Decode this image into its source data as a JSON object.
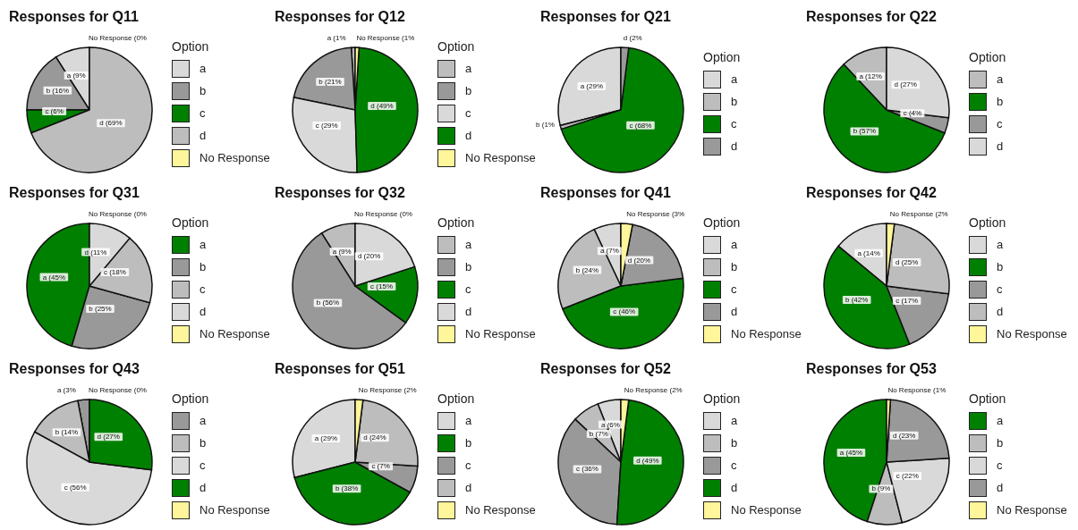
{
  "chart_data": [
    {
      "type": "pie",
      "title": "Responses for Q11",
      "legend_title": "Option",
      "legend": "right",
      "categories": [
        "a",
        "b",
        "c",
        "d",
        "No Response"
      ],
      "values": [
        9,
        16,
        6,
        69,
        0
      ],
      "colors": [
        "#d9d9d9",
        "#999999",
        "#008000",
        "#bdbdbd",
        "#fff59a"
      ],
      "value_labels": [
        "a (9%",
        "b (16%",
        "c (6%",
        "d (69%",
        "No Response (0%"
      ]
    },
    {
      "type": "pie",
      "title": "Responses for Q12",
      "legend_title": "Option",
      "legend": "right",
      "categories": [
        "a",
        "b",
        "c",
        "d",
        "No Response"
      ],
      "values": [
        1,
        21,
        29,
        49,
        1
      ],
      "colors": [
        "#bdbdbd",
        "#999999",
        "#d9d9d9",
        "#008000",
        "#fff59a"
      ],
      "value_labels": [
        "a (1%",
        "b (21%",
        "c (29%",
        "d (49%",
        "No Response (1%"
      ]
    },
    {
      "type": "pie",
      "title": "Responses for Q21",
      "legend_title": "Option",
      "legend": "right",
      "categories": [
        "a",
        "b",
        "c",
        "d"
      ],
      "values": [
        29,
        1,
        68,
        2
      ],
      "colors": [
        "#d9d9d9",
        "#bdbdbd",
        "#008000",
        "#999999"
      ],
      "value_labels": [
        "a (29%",
        "b (1%",
        "c (68%",
        "d (2%"
      ]
    },
    {
      "type": "pie",
      "title": "Responses for Q22",
      "legend_title": "Option",
      "legend": "right",
      "categories": [
        "a",
        "b",
        "c",
        "d"
      ],
      "values": [
        12,
        57,
        4,
        27
      ],
      "colors": [
        "#bdbdbd",
        "#008000",
        "#999999",
        "#d9d9d9"
      ],
      "value_labels": [
        "a (12%",
        "b (57%",
        "c (4%",
        "d (27%"
      ]
    },
    {
      "type": "pie",
      "title": "Responses for Q31",
      "legend_title": "Option",
      "legend": "right",
      "categories": [
        "a",
        "b",
        "c",
        "d",
        "No Response"
      ],
      "values": [
        45,
        25,
        18,
        11,
        0
      ],
      "colors": [
        "#008000",
        "#999999",
        "#bdbdbd",
        "#d9d9d9",
        "#fff59a"
      ],
      "value_labels": [
        "a (45%",
        "b (25%",
        "c (18%",
        "d (11%",
        "No Response (0%"
      ]
    },
    {
      "type": "pie",
      "title": "Responses for Q32",
      "legend_title": "Option",
      "legend": "right",
      "categories": [
        "a",
        "b",
        "c",
        "d",
        "No Response"
      ],
      "values": [
        9,
        56,
        15,
        20,
        0
      ],
      "colors": [
        "#bdbdbd",
        "#999999",
        "#008000",
        "#d9d9d9",
        "#fff59a"
      ],
      "value_labels": [
        "a (9%",
        "b (56%",
        "c (15%",
        "d (20%",
        "No Response (0%"
      ]
    },
    {
      "type": "pie",
      "title": "Responses for Q41",
      "legend_title": "Option",
      "legend": "right",
      "categories": [
        "a",
        "b",
        "c",
        "d",
        "No Response"
      ],
      "values": [
        7,
        24,
        46,
        20,
        3
      ],
      "colors": [
        "#d9d9d9",
        "#bdbdbd",
        "#008000",
        "#999999",
        "#fff59a"
      ],
      "value_labels": [
        "a (7%",
        "b (24%",
        "c (46%",
        "d (20%",
        "No Response (3%"
      ]
    },
    {
      "type": "pie",
      "title": "Responses for Q42",
      "legend_title": "Option",
      "legend": "right",
      "categories": [
        "a",
        "b",
        "c",
        "d",
        "No Response"
      ],
      "values": [
        14,
        42,
        17,
        25,
        2
      ],
      "colors": [
        "#d9d9d9",
        "#008000",
        "#999999",
        "#bdbdbd",
        "#fff59a"
      ],
      "value_labels": [
        "a (14%",
        "b (42%",
        "c (17%",
        "d (25%",
        "No Response (2%"
      ]
    },
    {
      "type": "pie",
      "title": "Responses for Q43",
      "legend_title": "Option",
      "legend": "right",
      "categories": [
        "a",
        "b",
        "c",
        "d",
        "No Response"
      ],
      "values": [
        3,
        14,
        56,
        27,
        0
      ],
      "colors": [
        "#999999",
        "#bdbdbd",
        "#d9d9d9",
        "#008000",
        "#fff59a"
      ],
      "value_labels": [
        "a (3%",
        "b (14%",
        "c (56%",
        "d (27%",
        "No Response (0%"
      ]
    },
    {
      "type": "pie",
      "title": "Responses for Q51",
      "legend_title": "Option",
      "legend": "right",
      "categories": [
        "a",
        "b",
        "c",
        "d",
        "No Response"
      ],
      "values": [
        29,
        38,
        7,
        24,
        2
      ],
      "colors": [
        "#d9d9d9",
        "#008000",
        "#999999",
        "#bdbdbd",
        "#fff59a"
      ],
      "value_labels": [
        "a (29%",
        "b (38%",
        "c (7%",
        "d (24%",
        "No Response (2%"
      ]
    },
    {
      "type": "pie",
      "title": "Responses for Q52",
      "legend_title": "Option",
      "legend": "right",
      "categories": [
        "a",
        "b",
        "c",
        "d",
        "No Response"
      ],
      "values": [
        6,
        7,
        36,
        49,
        2
      ],
      "colors": [
        "#d9d9d9",
        "#bdbdbd",
        "#999999",
        "#008000",
        "#fff59a"
      ],
      "value_labels": [
        "a (6%",
        "b (7%",
        "c (36%",
        "d (49%",
        "No Response (2%"
      ]
    },
    {
      "type": "pie",
      "title": "Responses for Q53",
      "legend_title": "Option",
      "legend": "right",
      "categories": [
        "a",
        "b",
        "c",
        "d",
        "No Response"
      ],
      "values": [
        45,
        9,
        22,
        23,
        1
      ],
      "colors": [
        "#008000",
        "#bdbdbd",
        "#d9d9d9",
        "#999999",
        "#fff59a"
      ],
      "value_labels": [
        "a (45%",
        "b (9%",
        "c (22%",
        "d (23%",
        "No Response (1%"
      ]
    }
  ]
}
